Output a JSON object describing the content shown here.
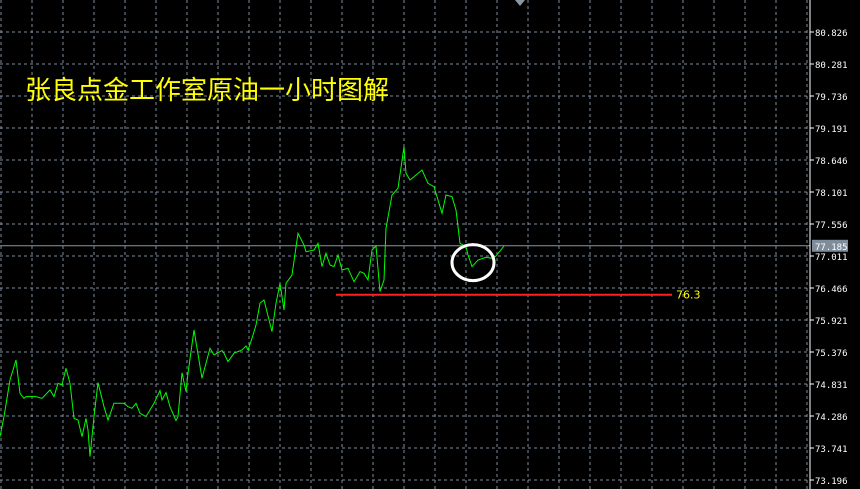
{
  "title": "张良点金工作室原油一小时图解",
  "colors": {
    "background": "#000000",
    "grid": "#7f8c9a",
    "price_line": "#00ff00",
    "support_line": "#ff2020",
    "support_label": "#ffff00",
    "current_price_line": "#8c96a0",
    "title": "#ffff00",
    "highlight_circle": "#ffffff"
  },
  "chart_data": {
    "type": "line",
    "title": "张良点金工作室原油一小时图解",
    "xlabel": "",
    "ylabel": "",
    "ylim": [
      73.196,
      80.826
    ],
    "grid": true,
    "y_ticks": [
      "80.826",
      "80.281",
      "79.736",
      "79.191",
      "78.646",
      "78.101",
      "77.556",
      "77.011",
      "76.466",
      "75.921",
      "75.376",
      "74.831",
      "74.286",
      "73.741",
      "73.196"
    ],
    "current_price": "77.185",
    "support_level": {
      "value": 76.3,
      "label": "76.3",
      "from_bar": 168,
      "to_bar": 336
    },
    "highlight_circle": {
      "bar": 236,
      "price": 76.95
    },
    "series": [
      {
        "points": [
          [
            0,
            73.935
          ],
          [
            2,
            74.275
          ],
          [
            5,
            74.9
          ],
          [
            8,
            75.24
          ],
          [
            10,
            74.672
          ],
          [
            12,
            74.587
          ],
          [
            13,
            74.616
          ],
          [
            18,
            74.616
          ],
          [
            21,
            74.587
          ],
          [
            25,
            74.729
          ],
          [
            27,
            74.616
          ],
          [
            29,
            74.843
          ],
          [
            31,
            74.814
          ],
          [
            33,
            75.098
          ],
          [
            35,
            74.843
          ],
          [
            37,
            74.247
          ],
          [
            39,
            74.218
          ],
          [
            41,
            73.935
          ],
          [
            43,
            74.247
          ],
          [
            44,
            74.048
          ],
          [
            45,
            73.594
          ],
          [
            47,
            74.275
          ],
          [
            49,
            74.854
          ],
          [
            52,
            74.445
          ],
          [
            54,
            74.218
          ],
          [
            57,
            74.502
          ],
          [
            62,
            74.502
          ],
          [
            64,
            74.445
          ],
          [
            66,
            74.417
          ],
          [
            68,
            74.502
          ],
          [
            70,
            74.332
          ],
          [
            73,
            74.275
          ],
          [
            77,
            74.502
          ],
          [
            80,
            74.718
          ],
          [
            81,
            74.559
          ],
          [
            83,
            74.684
          ],
          [
            85,
            74.445
          ],
          [
            88,
            74.207
          ],
          [
            89,
            74.275
          ],
          [
            91,
            75.024
          ],
          [
            93,
            74.701
          ],
          [
            94,
            75.013
          ],
          [
            97,
            75.751
          ],
          [
            101,
            74.928
          ],
          [
            105,
            75.439
          ],
          [
            107,
            75.325
          ],
          [
            111,
            75.399
          ],
          [
            112,
            75.354
          ],
          [
            114,
            75.212
          ],
          [
            117,
            75.354
          ],
          [
            121,
            75.41
          ],
          [
            123,
            75.479
          ],
          [
            124,
            75.41
          ],
          [
            126,
            75.609
          ],
          [
            128,
            75.836
          ],
          [
            130,
            76.205
          ],
          [
            132,
            76.262
          ],
          [
            136,
            75.723
          ],
          [
            138,
            76.205
          ],
          [
            140,
            76.546
          ],
          [
            142,
            76.092
          ],
          [
            143,
            76.546
          ],
          [
            146,
            76.688
          ],
          [
            149,
            77.397
          ],
          [
            152,
            77.199
          ],
          [
            153,
            77.085
          ],
          [
            157,
            77.114
          ],
          [
            159,
            77.227
          ],
          [
            161,
            76.83
          ],
          [
            163,
            77.057
          ],
          [
            165,
            76.858
          ],
          [
            167,
            76.83
          ],
          [
            169,
            77.028
          ],
          [
            171,
            76.773
          ],
          [
            174,
            76.801
          ],
          [
            177,
            76.574
          ],
          [
            180,
            76.745
          ],
          [
            182,
            76.716
          ],
          [
            184,
            76.603
          ],
          [
            186,
            77.114
          ],
          [
            188,
            77.182
          ],
          [
            190,
            76.404
          ],
          [
            192,
            76.603
          ],
          [
            193,
            77.483
          ],
          [
            196,
            78.05
          ],
          [
            199,
            78.164
          ],
          [
            202,
            78.873
          ],
          [
            203,
            78.419
          ],
          [
            205,
            78.306
          ],
          [
            211,
            78.476
          ],
          [
            214,
            78.249
          ],
          [
            217,
            78.192
          ],
          [
            219,
            77.965
          ],
          [
            221,
            77.738
          ],
          [
            223,
            78.05
          ],
          [
            226,
            78.022
          ],
          [
            228,
            77.795
          ],
          [
            230,
            77.227
          ],
          [
            233,
            77.17
          ],
          [
            234,
            77.028
          ],
          [
            236,
            76.83
          ],
          [
            239,
            76.943
          ],
          [
            243,
            76.989
          ],
          [
            246,
            76.972
          ],
          [
            248,
            77.011
          ],
          [
            252,
            77.182
          ]
        ]
      }
    ]
  }
}
